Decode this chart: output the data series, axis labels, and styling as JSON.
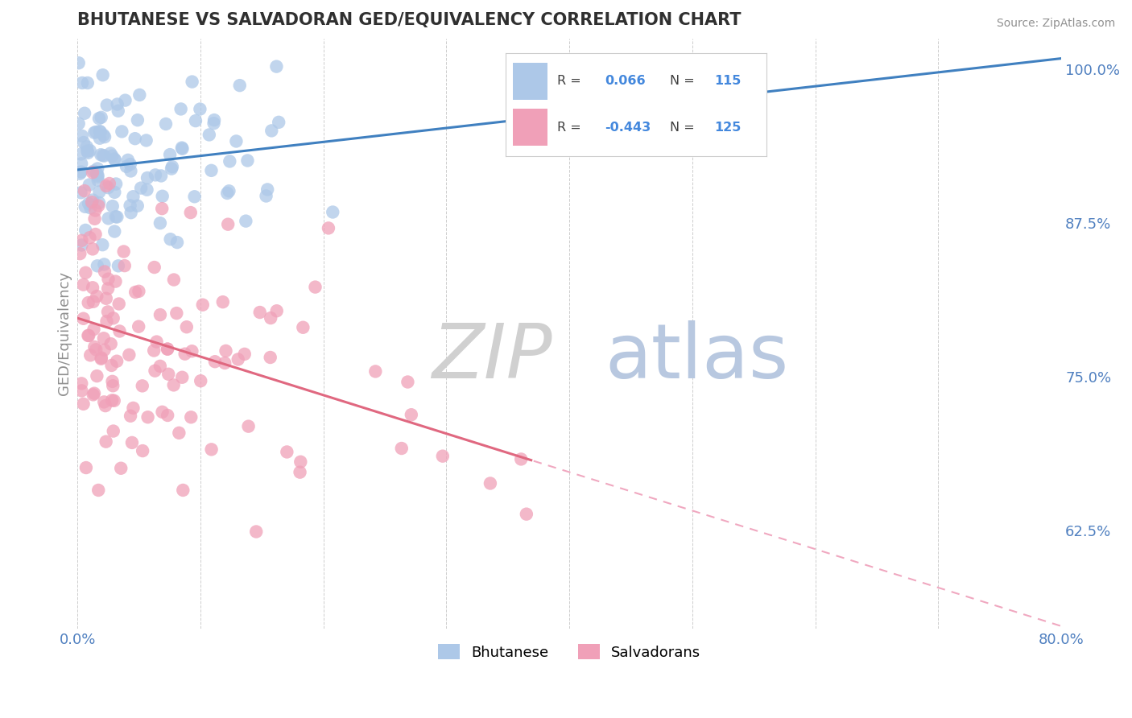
{
  "title": "BHUTANESE VS SALVADORAN GED/EQUIVALENCY CORRELATION CHART",
  "source": "Source: ZipAtlas.com",
  "ylabel": "GED/Equivalency",
  "xlim": [
    0.0,
    0.8
  ],
  "ylim": [
    0.545,
    1.025
  ],
  "xticks": [
    0.0,
    0.1,
    0.2,
    0.3,
    0.4,
    0.5,
    0.6,
    0.7,
    0.8
  ],
  "xticklabels": [
    "0.0%",
    "",
    "",
    "",
    "",
    "",
    "",
    "",
    "80.0%"
  ],
  "yticks_right": [
    0.625,
    0.75,
    0.875,
    1.0
  ],
  "yticklabels_right": [
    "62.5%",
    "75.0%",
    "87.5%",
    "100.0%"
  ],
  "blue_R": 0.066,
  "blue_N": 115,
  "pink_R": -0.443,
  "pink_N": 125,
  "blue_color": "#adc8e8",
  "blue_edge": "#adc8e8",
  "blue_trend_color": "#4080c0",
  "pink_color": "#f0a0b8",
  "pink_edge": "#f0a0b8",
  "pink_trend_color": "#e06880",
  "pink_dash_color": "#f0a8c0",
  "grid_color": "#c8c8c8",
  "bg_color": "#ffffff",
  "title_color": "#303030",
  "axis_label_color": "#5080c0",
  "tick_color": "#5080c0",
  "legend_R_color": "#4488dd",
  "legend_N_color": "#4488dd",
  "watermark_zip_color": "#d0d0d0",
  "watermark_atlas_color": "#b8c8e0",
  "seed": 77
}
